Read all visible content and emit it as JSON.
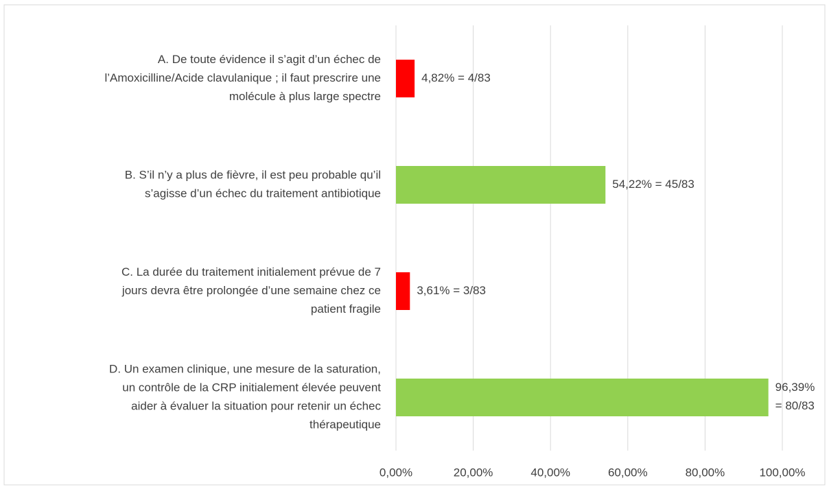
{
  "chart_data": {
    "type": "bar",
    "orientation": "horizontal",
    "categories": [
      [
        "A. De toute évidence il s’agit d’un échec de",
        "l’Amoxicilline/Acide clavulanique ; il faut prescrire une",
        "molécule à plus large spectre"
      ],
      [
        "B. S’il n’y a plus de fièvre, il est peu probable qu’il",
        "s’agisse d’un échec du traitement antibiotique"
      ],
      [
        "C. La durée du traitement initialement prévue de 7",
        "jours devra être prolongée d’une semaine chez ce",
        "patient fragile"
      ],
      [
        "D. Un examen clinique, une mesure de la saturation,",
        "un contrôle de la CRP initialement élevée peuvent",
        "aider à évaluer la situation pour retenir un échec",
        "thérapeutique"
      ]
    ],
    "values": [
      4.82,
      54.22,
      3.61,
      96.39
    ],
    "value_labels": [
      "4,82% = 4/83",
      "54,22% = 45/83",
      "3,61% = 3/83",
      "96,39% = 80/83"
    ],
    "colors": [
      "#ff0000",
      "#92d050",
      "#ff0000",
      "#92d050"
    ],
    "xlim": [
      0,
      100
    ],
    "xticks": [
      {
        "value": 0,
        "label": "0,00%"
      },
      {
        "value": 20,
        "label": "20,00%"
      },
      {
        "value": 40,
        "label": "40,00%"
      },
      {
        "value": 60,
        "label": "60,00%"
      },
      {
        "value": 80,
        "label": "80,00%"
      },
      {
        "value": 100,
        "label": "100,00%"
      }
    ],
    "grid": true
  }
}
